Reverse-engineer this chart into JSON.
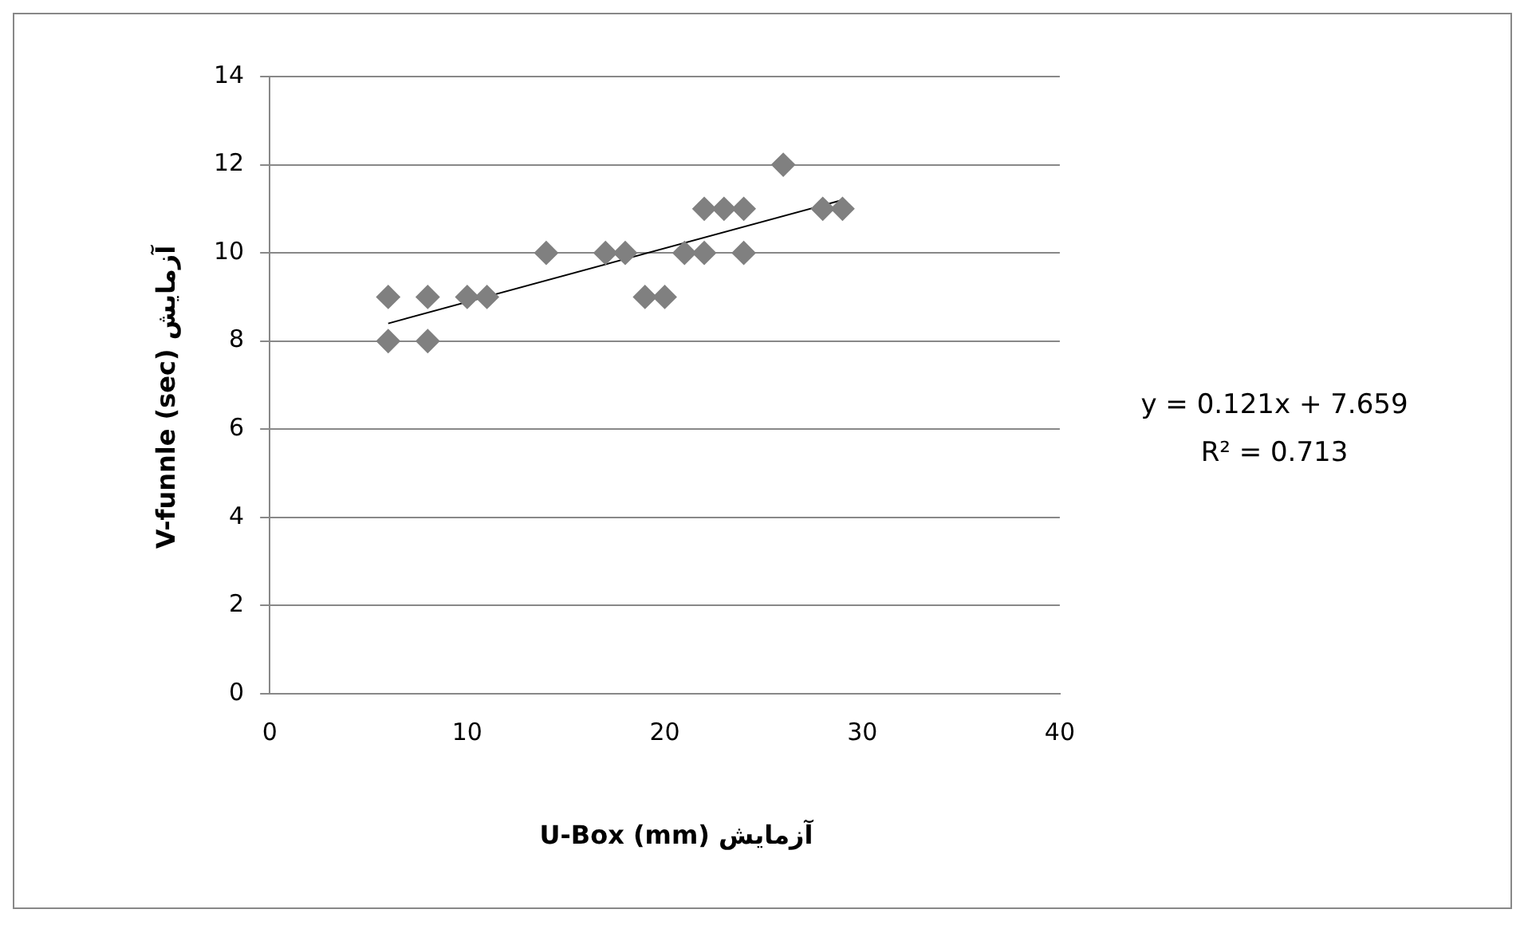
{
  "chart_data": {
    "type": "scatter",
    "xlabel": "آزمایش U-Box (mm)",
    "ylabel": "آزمایش V-funnle (sec)",
    "annotations": [
      "y = 0.121x + 7.659",
      "R² = 0.713"
    ],
    "series": [
      {
        "color": "#808080",
        "marker": "diamond",
        "x": [
          6,
          6,
          8,
          8,
          10,
          11,
          14,
          17,
          18,
          19,
          20,
          21,
          22,
          22,
          23,
          24,
          24,
          26,
          28,
          29
        ],
        "values": [
          9,
          8,
          9,
          8,
          9,
          9,
          10,
          10,
          10,
          9,
          9,
          10,
          11,
          10,
          11,
          11,
          10,
          12,
          11,
          11
        ]
      },
      {
        "type": "line",
        "color": "#000000",
        "marker": "none",
        "x": [
          6,
          29
        ],
        "values": [
          8.4,
          11.2
        ]
      }
    ],
    "xlim": [
      0,
      40
    ],
    "xticks": [
      0,
      10,
      20,
      30,
      40
    ],
    "ylim": [
      0,
      14
    ],
    "yticks": [
      0,
      2,
      4,
      6,
      8,
      10,
      12,
      14
    ],
    "grid": "y",
    "legend": false
  }
}
